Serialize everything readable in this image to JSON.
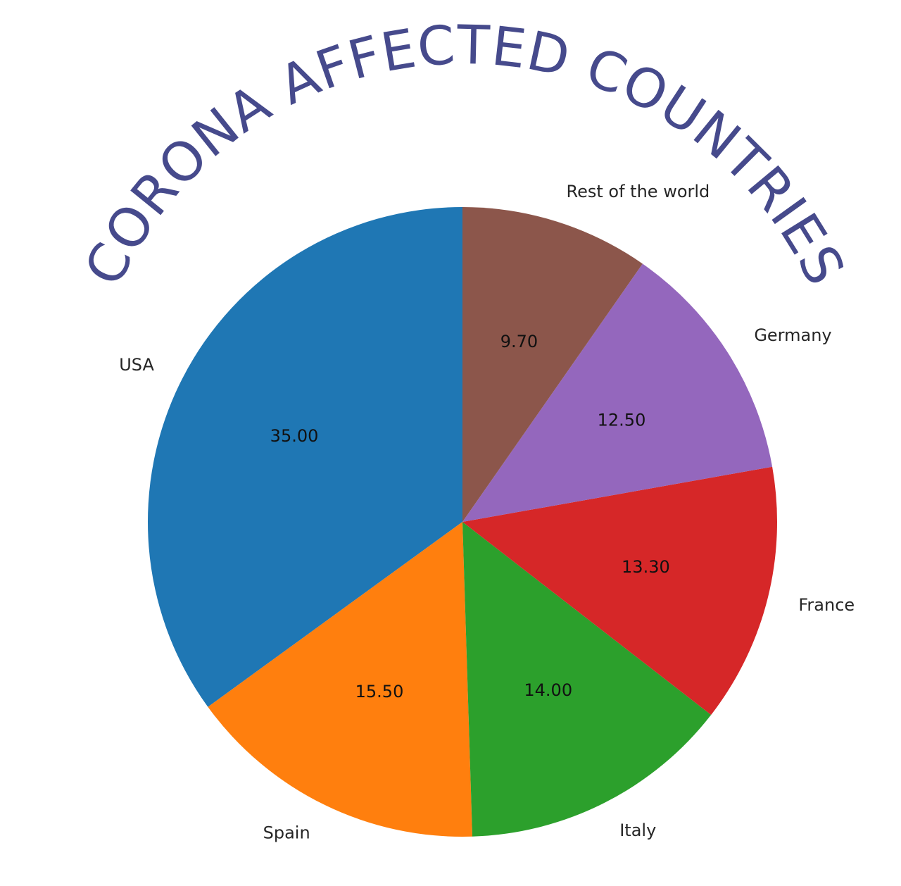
{
  "chart_data": {
    "type": "pie",
    "title": "CORONA AFFECTED COUNTRIES",
    "title_color": "#464a8c",
    "value_format": "two decimals",
    "categories": [
      "USA",
      "Spain",
      "Italy",
      "France",
      "Germany",
      "Rest of the world"
    ],
    "values": [
      35.0,
      15.5,
      14.0,
      13.3,
      12.5,
      9.7
    ],
    "value_labels": [
      "35.00",
      "15.50",
      "14.00",
      "13.30",
      "12.50",
      "9.70"
    ],
    "colors": [
      "#1f77b4",
      "#ff7f0e",
      "#2ca02c",
      "#d62728",
      "#9467bd",
      "#8c564b"
    ],
    "start_angle_deg": 90,
    "direction": "counterclockwise",
    "legend": "none"
  }
}
